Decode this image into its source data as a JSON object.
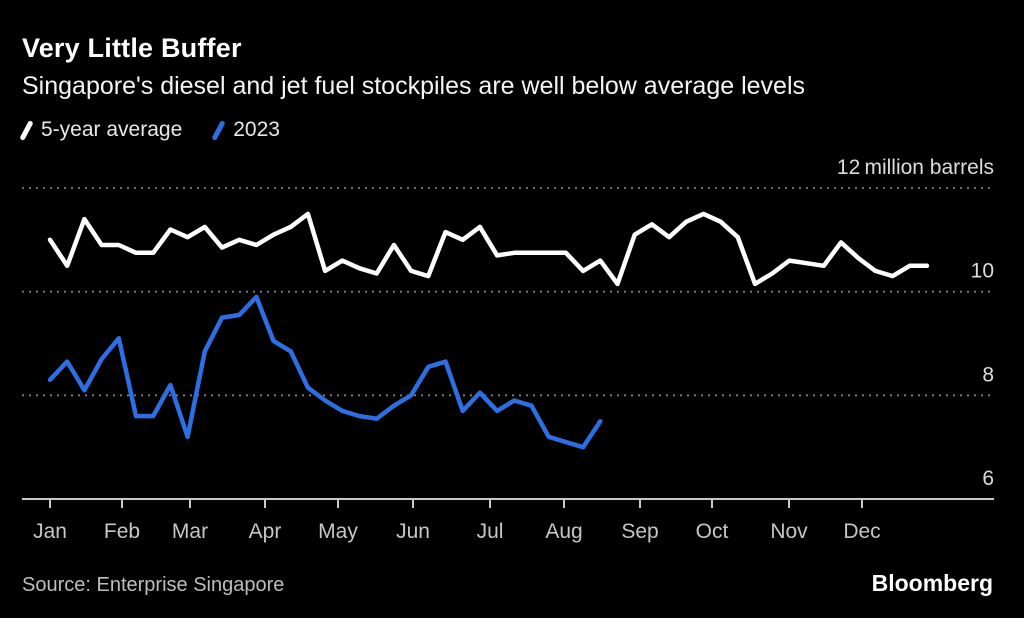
{
  "header": {
    "title": "Very Little Buffer",
    "subtitle": "Singapore's diesel and jet fuel stockpiles are well below average levels"
  },
  "legend": {
    "items": [
      {
        "label": "5-year average",
        "color": "#ffffff"
      },
      {
        "label": "2023",
        "color": "#2d6fe3"
      }
    ]
  },
  "chart_data": {
    "type": "line",
    "title": "Very Little Buffer",
    "subtitle": "Singapore's diesel and jet fuel stockpiles are well below average levels",
    "x_unit": "weekly observations, January through December",
    "grid": "horizontal-dotted",
    "legend_position": "top-left",
    "x_axis": {
      "tick_labels": [
        "Jan",
        "Feb",
        "Mar",
        "Apr",
        "May",
        "Jun",
        "Jul",
        "Aug",
        "Sep",
        "Oct",
        "Nov",
        "Dec"
      ]
    },
    "y_axis": {
      "unit": "million barrels",
      "ylim": [
        6,
        12.4
      ],
      "ticks": [
        {
          "value": 12,
          "label": "12 million barrels"
        },
        {
          "value": 10,
          "label": "10"
        },
        {
          "value": 8,
          "label": "8"
        },
        {
          "value": 6,
          "label": "6"
        }
      ]
    },
    "series": [
      {
        "name": "5-year average",
        "color": "#ffffff",
        "values": [
          11.0,
          10.5,
          11.4,
          10.9,
          10.9,
          10.75,
          10.75,
          11.2,
          11.05,
          11.25,
          10.85,
          11.0,
          10.9,
          11.1,
          11.25,
          11.5,
          10.4,
          10.6,
          10.45,
          10.35,
          10.9,
          10.4,
          10.3,
          11.15,
          11.0,
          11.25,
          10.7,
          10.75,
          10.75,
          10.75,
          10.75,
          10.4,
          10.6,
          10.15,
          11.1,
          11.3,
          11.05,
          11.35,
          11.5,
          11.35,
          11.05,
          10.15,
          10.35,
          10.6,
          10.55,
          10.5,
          10.95,
          10.65,
          10.4,
          10.3,
          10.5,
          10.5
        ]
      },
      {
        "name": "2023",
        "color": "#2d6fe3",
        "values": [
          8.3,
          8.65,
          8.1,
          8.7,
          9.1,
          7.6,
          7.6,
          8.2,
          7.2,
          8.85,
          9.5,
          9.55,
          9.9,
          9.05,
          8.85,
          8.15,
          7.9,
          7.7,
          7.6,
          7.55,
          7.8,
          8.0,
          8.55,
          8.65,
          7.7,
          8.05,
          7.7,
          7.9,
          7.8,
          7.2,
          7.1,
          7.0,
          7.5
        ]
      }
    ]
  },
  "footer": {
    "source": "Source: Enterprise Singapore",
    "brand": "Bloomberg"
  },
  "style": {
    "background": "#000000",
    "gridline_color": "#7d7d7d",
    "axis_color": "#c9c9c9",
    "axis_label_color": "#c6c6c6",
    "y_label_color": "#dcdcdc"
  }
}
